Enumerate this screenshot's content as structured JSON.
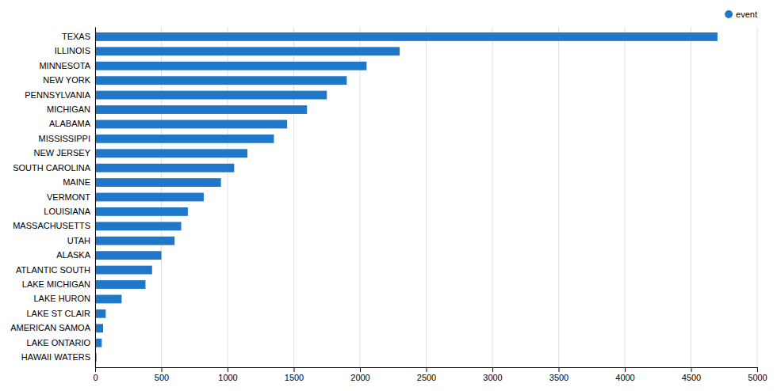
{
  "chart_data": {
    "type": "bar",
    "orientation": "horizontal",
    "categories": [
      "HAWAII WATERS",
      "LAKE ONTARIO",
      "AMERICAN SAMOA",
      "LAKE ST CLAIR",
      "LAKE HURON",
      "LAKE MICHIGAN",
      "ATLANTIC SOUTH",
      "ALASKA",
      "UTAH",
      "MASSACHUSETTS",
      "LOUISIANA",
      "VERMONT",
      "MAINE",
      "SOUTH CAROLINA",
      "NEW JERSEY",
      "MISSISSIPPI",
      "ALABAMA",
      "MICHIGAN",
      "PENNSYLVANIA",
      "NEW YORK",
      "MINNESOTA",
      "ILLINOIS",
      "TEXAS"
    ],
    "series": [
      {
        "name": "event",
        "color": "#1f77c9",
        "values": [
          10,
          50,
          60,
          80,
          200,
          380,
          430,
          500,
          600,
          650,
          700,
          820,
          950,
          1050,
          1150,
          1350,
          1450,
          1600,
          1750,
          1900,
          2050,
          2300,
          4700
        ]
      }
    ],
    "xlim": [
      0,
      5000
    ],
    "xticks": [
      0,
      500,
      1000,
      1500,
      2000,
      2500,
      3000,
      3500,
      4000,
      4500,
      5000
    ],
    "grid": true,
    "legend": "upper right"
  }
}
